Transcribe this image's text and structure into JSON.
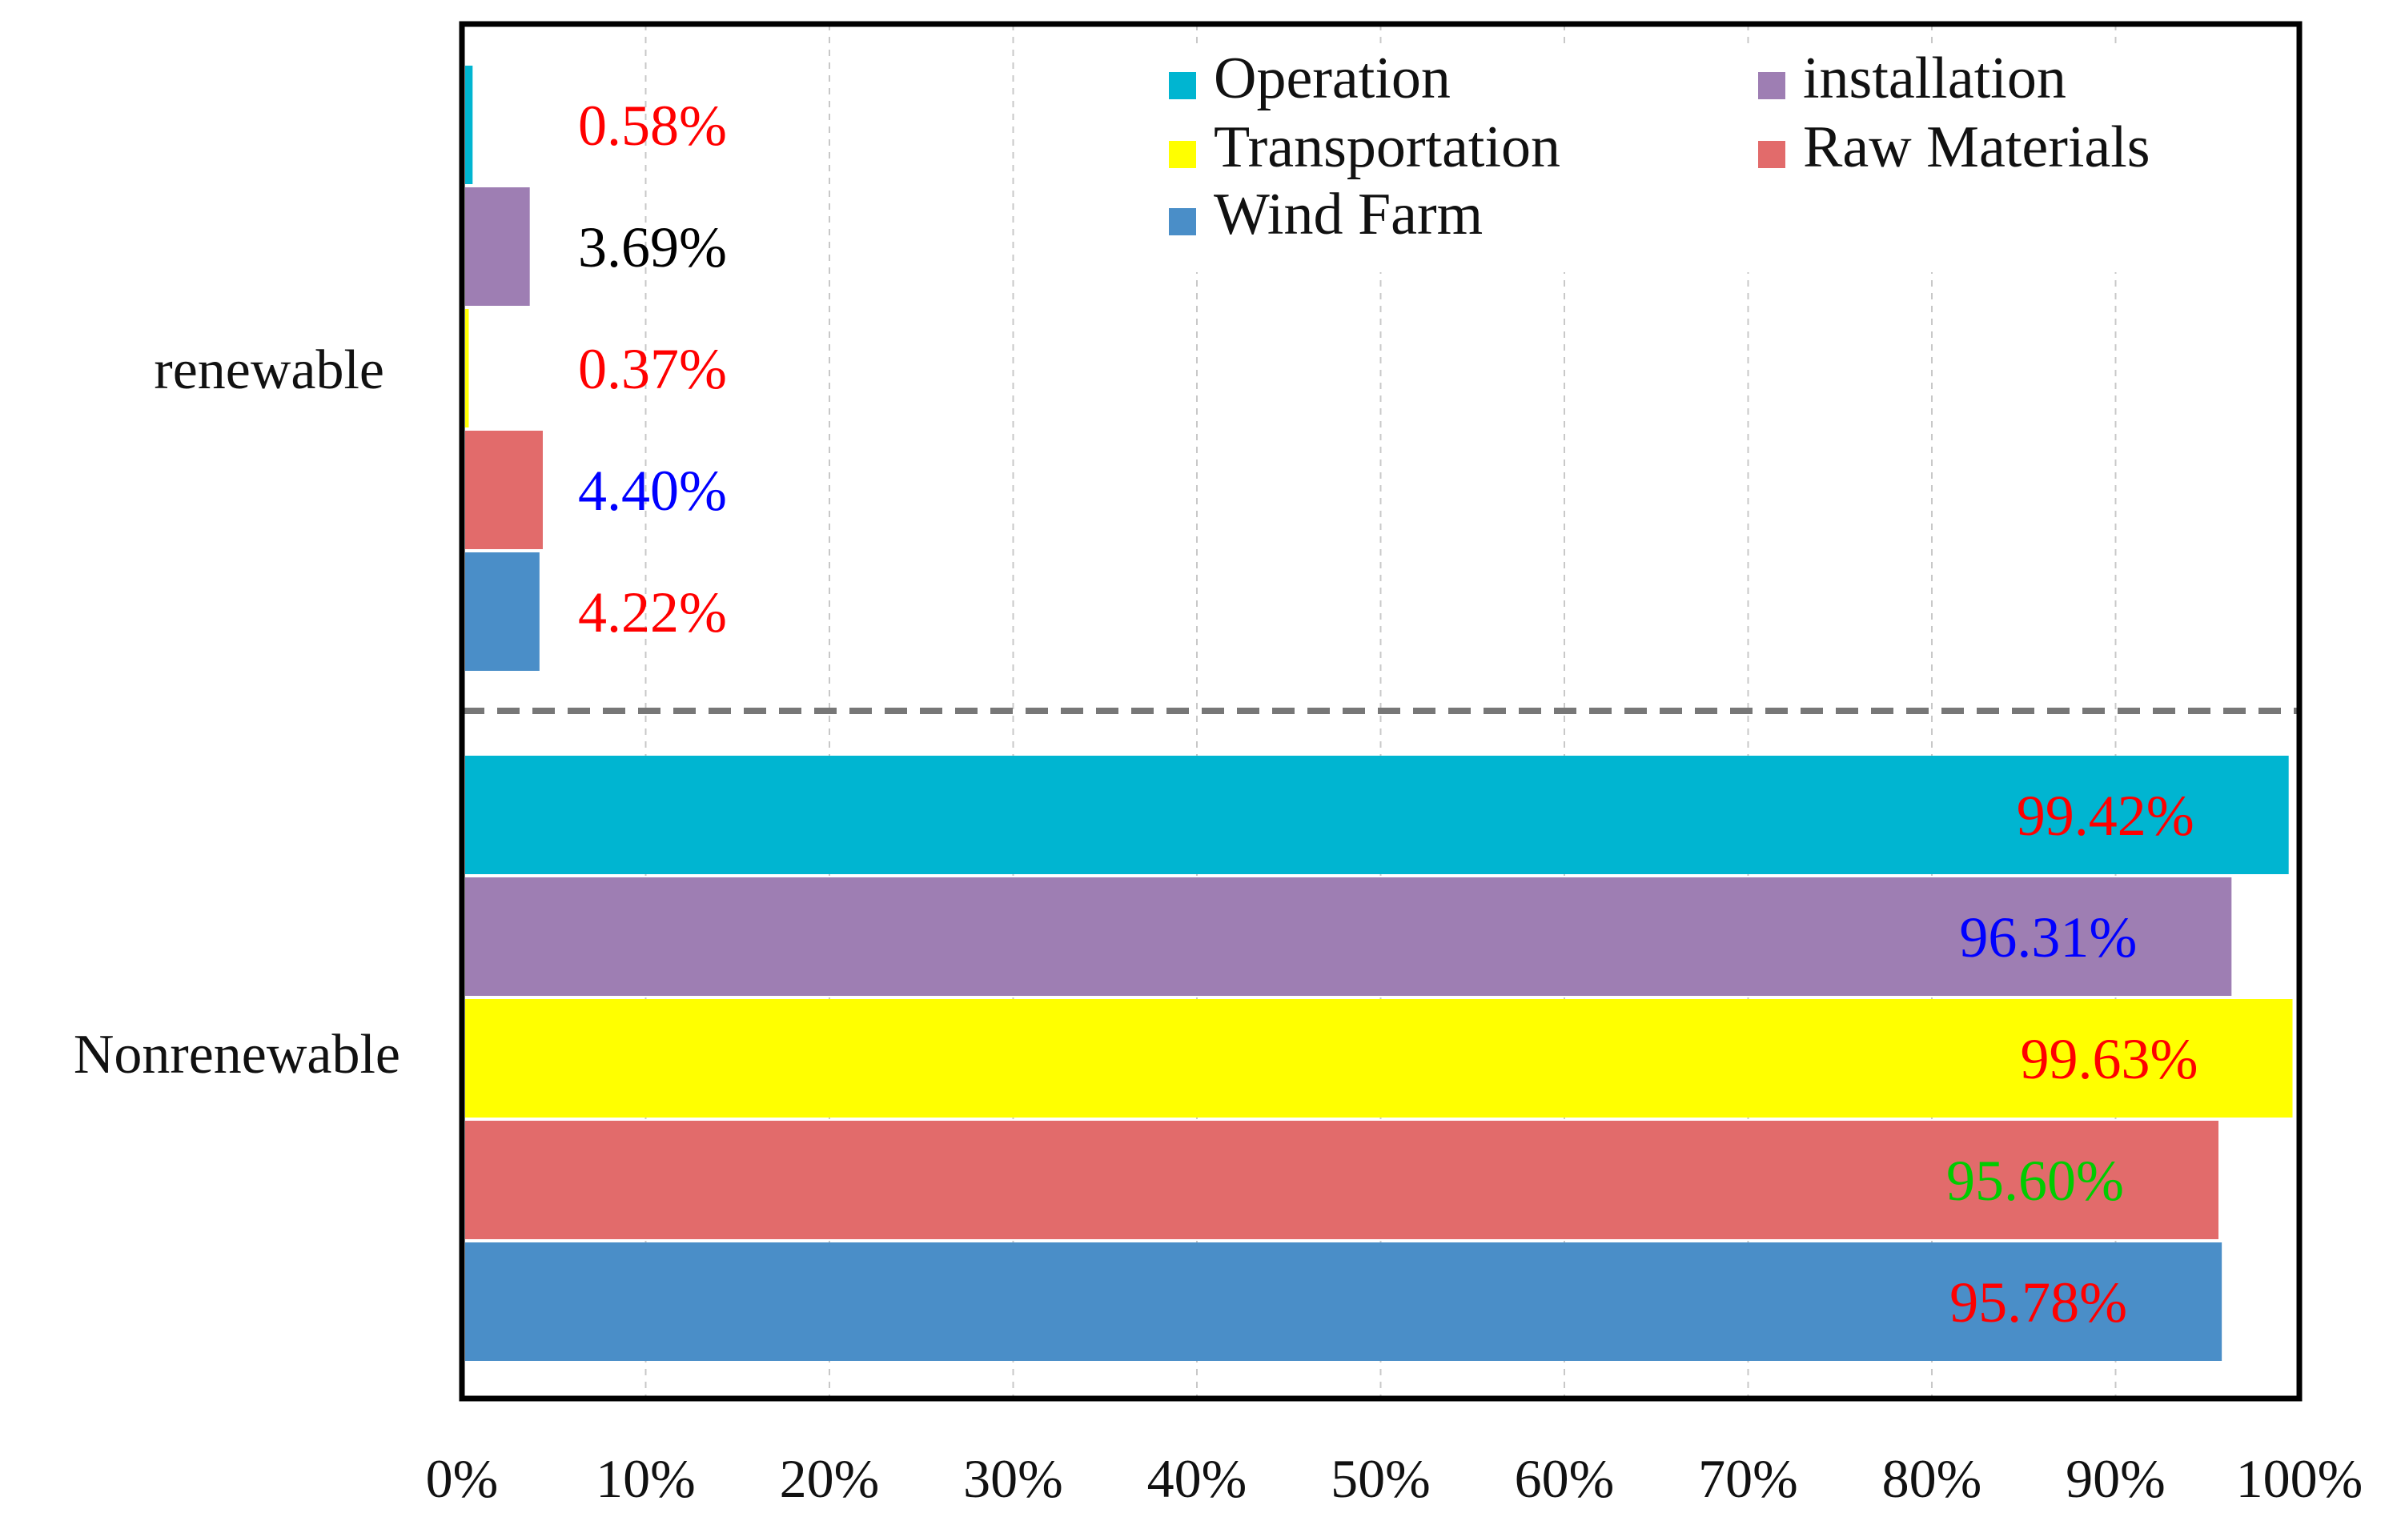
{
  "chart_data": {
    "type": "bar",
    "orientation": "horizontal",
    "title": "",
    "xlabel": "",
    "ylabel": "",
    "xlim": [
      0,
      100
    ],
    "x_ticks": [
      "0%",
      "10%",
      "20%",
      "30%",
      "40%",
      "50%",
      "60%",
      "70%",
      "80%",
      "90%",
      "100%"
    ],
    "grid": "vertical dashed",
    "categories": [
      "renewable",
      "Nonrenewable"
    ],
    "legend_position": "top-right",
    "series": [
      {
        "name": "Operation",
        "color": "#00b5d1",
        "values": [
          0.58,
          99.42
        ],
        "labels": [
          "0.58%",
          "99.42%"
        ],
        "label_colors": [
          "#ff0000",
          "#ff0000"
        ]
      },
      {
        "name": "installation",
        "color": "#9e7eb3",
        "values": [
          3.69,
          96.31
        ],
        "labels": [
          "3.69%",
          "96.31%"
        ],
        "label_colors": [
          "#000000",
          "#0000ff"
        ]
      },
      {
        "name": "Transportation",
        "color": "#ffff00",
        "values": [
          0.37,
          99.63
        ],
        "labels": [
          "0.37%",
          "99.63%"
        ],
        "label_colors": [
          "#ff0000",
          "#ff0000"
        ]
      },
      {
        "name": "Raw Materials",
        "color": "#e26b6b",
        "values": [
          4.4,
          95.6
        ],
        "labels": [
          "4.40%",
          "95.60%"
        ],
        "label_colors": [
          "#0000ff",
          "#00cc00"
        ]
      },
      {
        "name": "Wind Farm",
        "color": "#4a8ec8",
        "values": [
          4.22,
          95.78
        ],
        "labels": [
          "4.22%",
          "95.78%"
        ],
        "label_colors": [
          "#ff0000",
          "#ff0000"
        ]
      }
    ]
  }
}
